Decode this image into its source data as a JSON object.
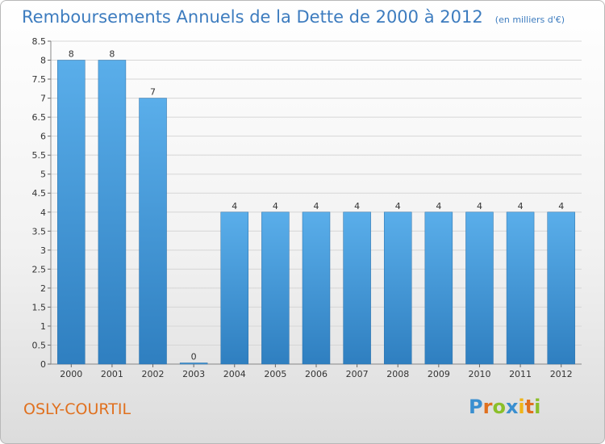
{
  "chart_data": {
    "type": "bar",
    "title": "Remboursements Annuels de la Dette de 2000 à 2012",
    "subtitle": "(en milliers d'€)",
    "categories": [
      "2000",
      "2001",
      "2002",
      "2003",
      "2004",
      "2005",
      "2006",
      "2007",
      "2008",
      "2009",
      "2010",
      "2011",
      "2012"
    ],
    "values": [
      8,
      8,
      7,
      0,
      4,
      4,
      4,
      4,
      4,
      4,
      4,
      4,
      4
    ],
    "ylim": [
      0,
      8.5
    ],
    "yticks": [
      "0",
      "0.5",
      "1",
      "1.5",
      "2",
      "2.5",
      "3",
      "3.5",
      "4",
      "4.5",
      "5",
      "5.5",
      "6",
      "6.5",
      "7",
      "7.5",
      "8",
      "8.5"
    ],
    "grid": true,
    "bar_color": "#3d8fd6"
  },
  "footer": {
    "town": "OSLY-COURTIL",
    "brand_letters": [
      {
        "ch": "P",
        "color": "#3a8fd0"
      },
      {
        "ch": "r",
        "color": "#e0701e"
      },
      {
        "ch": "o",
        "color": "#8bbf2a"
      },
      {
        "ch": "x",
        "color": "#3a8fd0"
      },
      {
        "ch": "i",
        "color": "#f0b418"
      },
      {
        "ch": "t",
        "color": "#e0701e"
      },
      {
        "ch": "i",
        "color": "#8bbf2a"
      }
    ]
  }
}
